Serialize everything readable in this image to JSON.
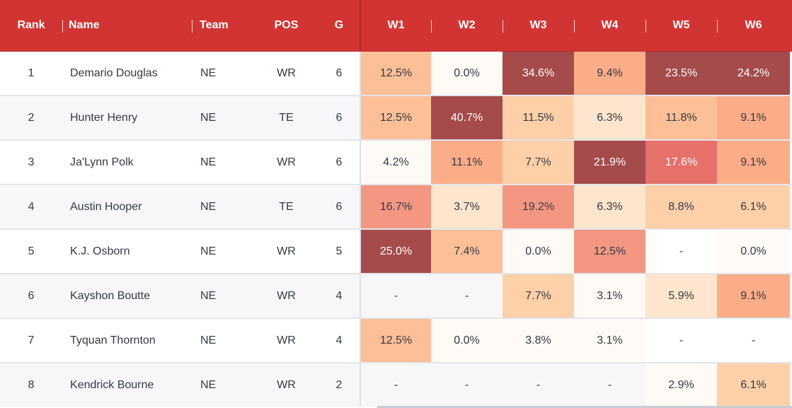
{
  "header": {
    "rank": "Rank",
    "name": "Name",
    "team": "Team",
    "pos": "POS",
    "g": "G",
    "weeks": [
      "W1",
      "W2",
      "W3",
      "W4",
      "W5",
      "W6"
    ]
  },
  "colors": {
    "header_bg": "#d23434",
    "heat_scale": {
      "lvl0": "#fffaf5",
      "lvl1": "#fde6cd",
      "lvl2": "#fdd0a9",
      "lvl3": "#fcbf97",
      "lvl4": "#fbac89",
      "lvl5": "#f39783",
      "lvl6": "#e6706a",
      "lvl7": "#a54b4b"
    }
  },
  "rows": [
    {
      "rank": "1",
      "name": "Demario Douglas",
      "team": "NE",
      "pos": "WR",
      "g": "6",
      "weeks": [
        {
          "text": "12.5%",
          "level": "lvl3"
        },
        {
          "text": "0.0%",
          "level": "lvl0"
        },
        {
          "text": "34.6%",
          "level": "lvl7"
        },
        {
          "text": "9.4%",
          "level": "lvl4"
        },
        {
          "text": "23.5%",
          "level": "lvl7"
        },
        {
          "text": "24.2%",
          "level": "lvl7"
        }
      ]
    },
    {
      "rank": "2",
      "name": "Hunter Henry",
      "team": "NE",
      "pos": "TE",
      "g": "6",
      "weeks": [
        {
          "text": "12.5%",
          "level": "lvl3"
        },
        {
          "text": "40.7%",
          "level": "lvl7"
        },
        {
          "text": "11.5%",
          "level": "lvl2"
        },
        {
          "text": "6.3%",
          "level": "lvl1"
        },
        {
          "text": "11.8%",
          "level": "lvl3"
        },
        {
          "text": "9.1%",
          "level": "lvl4"
        }
      ]
    },
    {
      "rank": "3",
      "name": "Ja'Lynn Polk",
      "team": "NE",
      "pos": "WR",
      "g": "6",
      "weeks": [
        {
          "text": "4.2%",
          "level": "lvl0"
        },
        {
          "text": "11.1%",
          "level": "lvl4"
        },
        {
          "text": "7.7%",
          "level": "lvl2"
        },
        {
          "text": "21.9%",
          "level": "lvl7"
        },
        {
          "text": "17.6%",
          "level": "lvl6"
        },
        {
          "text": "9.1%",
          "level": "lvl4"
        }
      ]
    },
    {
      "rank": "4",
      "name": "Austin Hooper",
      "team": "NE",
      "pos": "TE",
      "g": "6",
      "weeks": [
        {
          "text": "16.7%",
          "level": "lvl5"
        },
        {
          "text": "3.7%",
          "level": "lvl1"
        },
        {
          "text": "19.2%",
          "level": "lvl5"
        },
        {
          "text": "6.3%",
          "level": "lvl1"
        },
        {
          "text": "8.8%",
          "level": "lvl2"
        },
        {
          "text": "6.1%",
          "level": "lvl2"
        }
      ]
    },
    {
      "rank": "5",
      "name": "K.J. Osborn",
      "team": "NE",
      "pos": "WR",
      "g": "5",
      "weeks": [
        {
          "text": "25.0%",
          "level": "lvl7"
        },
        {
          "text": "7.4%",
          "level": "lvl3"
        },
        {
          "text": "0.0%",
          "level": "lvl0"
        },
        {
          "text": "12.5%",
          "level": "lvl5"
        },
        {
          "text": "-",
          "level": ""
        },
        {
          "text": "0.0%",
          "level": "lvl0"
        }
      ]
    },
    {
      "rank": "6",
      "name": "Kayshon Boutte",
      "team": "NE",
      "pos": "WR",
      "g": "4",
      "weeks": [
        {
          "text": "-",
          "level": ""
        },
        {
          "text": "-",
          "level": ""
        },
        {
          "text": "7.7%",
          "level": "lvl2"
        },
        {
          "text": "3.1%",
          "level": "lvl0"
        },
        {
          "text": "5.9%",
          "level": "lvl1"
        },
        {
          "text": "9.1%",
          "level": "lvl4"
        }
      ]
    },
    {
      "rank": "7",
      "name": "Tyquan Thornton",
      "team": "NE",
      "pos": "WR",
      "g": "4",
      "weeks": [
        {
          "text": "12.5%",
          "level": "lvl3"
        },
        {
          "text": "0.0%",
          "level": "lvl0"
        },
        {
          "text": "3.8%",
          "level": "lvl0"
        },
        {
          "text": "3.1%",
          "level": "lvl0"
        },
        {
          "text": "-",
          "level": ""
        },
        {
          "text": "-",
          "level": ""
        }
      ]
    },
    {
      "rank": "8",
      "name": "Kendrick Bourne",
      "team": "NE",
      "pos": "WR",
      "g": "2",
      "weeks": [
        {
          "text": "-",
          "level": ""
        },
        {
          "text": "-",
          "level": ""
        },
        {
          "text": "-",
          "level": ""
        },
        {
          "text": "-",
          "level": ""
        },
        {
          "text": "2.9%",
          "level": "lvl0"
        },
        {
          "text": "6.1%",
          "level": "lvl2"
        }
      ]
    }
  ]
}
